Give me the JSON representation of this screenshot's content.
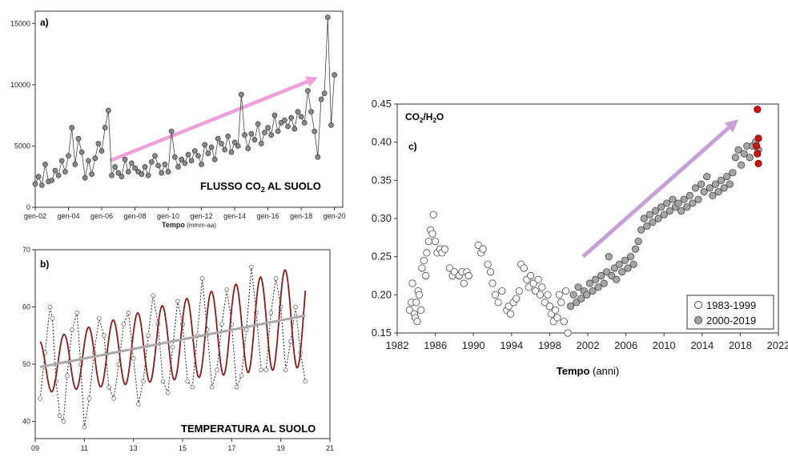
{
  "chart_data": [
    {
      "panel": "a)",
      "type": "line",
      "title": "FLUSSO CO",
      "title_sub": "2",
      "title_rest": " AL SUOLO",
      "xlabel": "Tempo",
      "xlabel_unit": " (mmm-aa)",
      "ylabel": "",
      "ylim": [
        0,
        16000
      ],
      "xlim": [
        2002,
        2020.5
      ],
      "y_ticks": [
        0,
        5000,
        10000,
        15000
      ],
      "x_ticks": [
        {
          "label": "gen-02",
          "value": 2002
        },
        {
          "label": "gen-04",
          "value": 2004
        },
        {
          "label": "gen-06",
          "value": 2006
        },
        {
          "label": "gen-08",
          "value": 2008
        },
        {
          "label": "gen-10",
          "value": 2010
        },
        {
          "label": "gen-12",
          "value": 2012
        },
        {
          "label": "gen-14",
          "value": 2014
        },
        {
          "label": "gen-16",
          "value": 2016
        },
        {
          "label": "gen-18",
          "value": 2018
        },
        {
          "label": "gen-20",
          "value": 2020
        }
      ],
      "series": [
        {
          "x": [
            2002.0,
            2002.2,
            2002.4,
            2002.6,
            2002.8,
            2003.0,
            2003.2,
            2003.4,
            2003.6,
            2003.8,
            2004.0,
            2004.2,
            2004.4,
            2004.6,
            2004.8,
            2005.0,
            2005.2,
            2005.4,
            2005.6,
            2005.8,
            2006.0,
            2006.2,
            2006.4,
            2006.6,
            2006.8,
            2007.0,
            2007.2,
            2007.4,
            2007.6,
            2007.8,
            2008.0,
            2008.2,
            2008.4,
            2008.6,
            2008.8,
            2009.0,
            2009.2,
            2009.4,
            2009.6,
            2009.8,
            2010.0,
            2010.2,
            2010.4,
            2010.6,
            2010.8,
            2011.0,
            2011.2,
            2011.4,
            2011.6,
            2011.8,
            2012.0,
            2012.2,
            2012.4,
            2012.6,
            2012.8,
            2013.0,
            2013.2,
            2013.4,
            2013.6,
            2013.8,
            2014.0,
            2014.2,
            2014.4,
            2014.6,
            2014.8,
            2015.0,
            2015.2,
            2015.4,
            2015.6,
            2015.8,
            2016.0,
            2016.2,
            2016.4,
            2016.6,
            2016.8,
            2017.0,
            2017.2,
            2017.4,
            2017.6,
            2017.8,
            2018.0,
            2018.2,
            2018.4,
            2018.6,
            2018.8,
            2019.0,
            2019.2,
            2019.4,
            2019.6,
            2019.8,
            2020.0
          ],
          "y": [
            1900,
            2500,
            1800,
            3500,
            2100,
            2200,
            3000,
            2600,
            3800,
            2900,
            4200,
            6500,
            3500,
            5600,
            4500,
            2400,
            3800,
            2700,
            4000,
            5200,
            4600,
            6500,
            7900,
            2600,
            3300,
            2800,
            2500,
            3900,
            2900,
            3600,
            3200,
            2900,
            2700,
            3300,
            2600,
            3700,
            4200,
            3400,
            2800,
            3500,
            2900,
            6200,
            4100,
            3300,
            3900,
            3600,
            4300,
            3800,
            4600,
            4200,
            3500,
            5100,
            4400,
            4900,
            3900,
            5600,
            5200,
            4700,
            5800,
            4500,
            5300,
            5000,
            9200,
            5900,
            4800,
            6000,
            5500,
            6800,
            5200,
            6100,
            6500,
            5900,
            7500,
            6200,
            6900,
            7100,
            6600,
            7300,
            6400,
            7800,
            7400,
            6900,
            9500,
            7800,
            6200,
            4100,
            8800,
            9300,
            15500,
            6700,
            10800
          ]
        }
      ],
      "annotations": [
        {
          "type": "arrow",
          "color": "#f0a0d8",
          "from": [
            2006.5,
            3800
          ],
          "to": [
            2019.0,
            10600
          ]
        }
      ]
    },
    {
      "panel": "b)",
      "type": "line",
      "title": "TEMPERATURA AL SUOLO",
      "ylim": [
        37,
        70
      ],
      "xlim": [
        9,
        21
      ],
      "y_ticks": [
        40,
        50,
        60,
        70
      ],
      "x_ticks": [
        {
          "label": "09",
          "value": 9
        },
        {
          "label": "11",
          "value": 11
        },
        {
          "label": "13",
          "value": 13
        },
        {
          "label": "15",
          "value": 15
        },
        {
          "label": "17",
          "value": 17
        },
        {
          "label": "19",
          "value": 19
        },
        {
          "label": "21",
          "value": 21
        }
      ],
      "fit_sine": {
        "offset_start": 49.5,
        "offset_end": 58.5,
        "amp_start": 4.5,
        "amp_end": 9.0,
        "period": 1.0,
        "phase": 0.28,
        "x_start": 9.2,
        "x_end": 20.0,
        "color": "#8b1a1a"
      },
      "trend": {
        "from": [
          9.2,
          49.5
        ],
        "to": [
          20.0,
          58.5
        ],
        "color": "#a8a8a8"
      },
      "observed": {
        "x": [
          9.2,
          9.4,
          9.6,
          9.7,
          9.85,
          10.0,
          10.15,
          10.3,
          10.5,
          10.7,
          10.85,
          11.0,
          11.2,
          11.4,
          11.6,
          11.8,
          12.0,
          12.2,
          12.4,
          12.6,
          12.8,
          13.0,
          13.2,
          13.4,
          13.6,
          13.8,
          14.0,
          14.2,
          14.4,
          14.6,
          14.8,
          15.0,
          15.2,
          15.4,
          15.6,
          15.8,
          16.0,
          16.2,
          16.4,
          16.6,
          16.8,
          17.0,
          17.2,
          17.4,
          17.6,
          17.8,
          18.0,
          18.2,
          18.4,
          18.6,
          18.8,
          19.0,
          19.2,
          19.4,
          19.6,
          19.8,
          20.0
        ],
        "y": [
          44,
          52,
          60,
          58,
          47,
          41,
          40,
          48,
          56,
          59,
          50,
          39,
          44,
          52,
          58,
          55,
          46,
          44,
          50,
          57,
          59,
          51,
          43,
          47,
          55,
          62,
          57,
          47,
          45,
          53,
          61,
          57,
          47,
          46,
          55,
          65,
          56,
          46,
          49,
          57,
          63,
          57,
          46,
          48,
          56,
          67,
          59,
          49,
          49,
          59,
          65,
          60,
          49,
          54,
          60,
          52,
          47
        ]
      }
    },
    {
      "panel": "c)",
      "type": "scatter",
      "title": "CO",
      "title_sub": "2",
      "title_mid": "/H",
      "title_sub2": "2",
      "title_rest": "O",
      "xlabel": "Tempo",
      "xlabel_unit": " (anni)",
      "ylim": [
        0.15,
        0.45
      ],
      "xlim": [
        1982,
        2022
      ],
      "y_ticks": [
        "0.15",
        "0.20",
        "0.25",
        "0.30",
        "0.35",
        "0.40",
        "0.45"
      ],
      "x_ticks": [
        "1982",
        "1986",
        "1990",
        "1994",
        "1998",
        "2002",
        "2006",
        "2010",
        "2014",
        "2018",
        "2022"
      ],
      "legend": {
        "position": "bottom-right",
        "entries": [
          "1983-1999",
          "2000-2019"
        ]
      },
      "series": [
        {
          "name": "1983-1999",
          "color": "#ffffff",
          "points": [
            [
              1983.3,
              0.18
            ],
            [
              1983.5,
              0.19
            ],
            [
              1983.6,
              0.215
            ],
            [
              1983.8,
              0.175
            ],
            [
              1983.9,
              0.17
            ],
            [
              1984.0,
              0.19
            ],
            [
              1984.1,
              0.165
            ],
            [
              1984.2,
              0.205
            ],
            [
              1984.3,
              0.2
            ],
            [
              1984.5,
              0.18
            ],
            [
              1984.6,
              0.235
            ],
            [
              1984.8,
              0.245
            ],
            [
              1985.0,
              0.225
            ],
            [
              1985.1,
              0.255
            ],
            [
              1985.3,
              0.27
            ],
            [
              1985.5,
              0.285
            ],
            [
              1985.7,
              0.28
            ],
            [
              1985.8,
              0.305
            ],
            [
              1986.0,
              0.27
            ],
            [
              1986.2,
              0.255
            ],
            [
              1986.5,
              0.26
            ],
            [
              1986.7,
              0.255
            ],
            [
              1987.0,
              0.26
            ],
            [
              1987.5,
              0.235
            ],
            [
              1987.8,
              0.225
            ],
            [
              1988.0,
              0.23
            ],
            [
              1988.5,
              0.225
            ],
            [
              1988.8,
              0.23
            ],
            [
              1989.0,
              0.215
            ],
            [
              1989.3,
              0.23
            ],
            [
              1989.5,
              0.225
            ],
            [
              1990.5,
              0.265
            ],
            [
              1990.8,
              0.255
            ],
            [
              1991.0,
              0.26
            ],
            [
              1991.5,
              0.24
            ],
            [
              1991.8,
              0.23
            ],
            [
              1992.0,
              0.215
            ],
            [
              1992.3,
              0.2
            ],
            [
              1992.6,
              0.19
            ],
            [
              1993.0,
              0.205
            ],
            [
              1993.5,
              0.18
            ],
            [
              1993.7,
              0.185
            ],
            [
              1993.9,
              0.175
            ],
            [
              1994.2,
              0.19
            ],
            [
              1994.5,
              0.195
            ],
            [
              1994.8,
              0.205
            ],
            [
              1995.0,
              0.24
            ],
            [
              1995.3,
              0.235
            ],
            [
              1995.6,
              0.22
            ],
            [
              1995.8,
              0.21
            ],
            [
              1996.0,
              0.225
            ],
            [
              1996.3,
              0.215
            ],
            [
              1996.5,
              0.205
            ],
            [
              1996.8,
              0.22
            ],
            [
              1997.0,
              0.2
            ],
            [
              1997.2,
              0.21
            ],
            [
              1997.5,
              0.19
            ],
            [
              1997.8,
              0.2
            ],
            [
              1998.0,
              0.185
            ],
            [
              1998.2,
              0.175
            ],
            [
              1998.4,
              0.165
            ],
            [
              1998.6,
              0.18
            ],
            [
              1998.8,
              0.17
            ],
            [
              1999.0,
              0.2
            ],
            [
              1999.2,
              0.19
            ],
            [
              1999.5,
              0.165
            ],
            [
              1999.7,
              0.205
            ],
            [
              1999.9,
              0.15
            ]
          ]
        },
        {
          "name": "2000-2019",
          "color": "#a6a6a6",
          "points": [
            [
              2000.2,
              0.185
            ],
            [
              2000.5,
              0.2
            ],
            [
              2000.8,
              0.19
            ],
            [
              2001.0,
              0.21
            ],
            [
              2001.3,
              0.195
            ],
            [
              2001.6,
              0.205
            ],
            [
              2001.9,
              0.2
            ],
            [
              2002.2,
              0.215
            ],
            [
              2002.5,
              0.205
            ],
            [
              2002.8,
              0.22
            ],
            [
              2003.1,
              0.21
            ],
            [
              2003.4,
              0.225
            ],
            [
              2003.7,
              0.215
            ],
            [
              2004.0,
              0.23
            ],
            [
              2004.2,
              0.25
            ],
            [
              2004.5,
              0.225
            ],
            [
              2004.8,
              0.235
            ],
            [
              2005.0,
              0.22
            ],
            [
              2005.3,
              0.24
            ],
            [
              2005.6,
              0.23
            ],
            [
              2005.9,
              0.245
            ],
            [
              2006.2,
              0.235
            ],
            [
              2006.5,
              0.25
            ],
            [
              2006.8,
              0.24
            ],
            [
              2007.0,
              0.26
            ],
            [
              2007.3,
              0.27
            ],
            [
              2007.6,
              0.285
            ],
            [
              2007.9,
              0.3
            ],
            [
              2008.2,
              0.29
            ],
            [
              2008.5,
              0.305
            ],
            [
              2008.8,
              0.295
            ],
            [
              2009.1,
              0.31
            ],
            [
              2009.4,
              0.3
            ],
            [
              2009.7,
              0.315
            ],
            [
              2010.0,
              0.305
            ],
            [
              2010.3,
              0.32
            ],
            [
              2010.6,
              0.31
            ],
            [
              2010.9,
              0.325
            ],
            [
              2011.2,
              0.315
            ],
            [
              2011.5,
              0.32
            ],
            [
              2011.8,
              0.31
            ],
            [
              2012.1,
              0.325
            ],
            [
              2012.4,
              0.315
            ],
            [
              2012.7,
              0.33
            ],
            [
              2013.0,
              0.32
            ],
            [
              2013.3,
              0.34
            ],
            [
              2013.6,
              0.325
            ],
            [
              2013.9,
              0.345
            ],
            [
              2014.2,
              0.335
            ],
            [
              2014.5,
              0.355
            ],
            [
              2014.8,
              0.34
            ],
            [
              2015.1,
              0.33
            ],
            [
              2015.4,
              0.345
            ],
            [
              2015.7,
              0.335
            ],
            [
              2016.0,
              0.35
            ],
            [
              2016.3,
              0.34
            ],
            [
              2016.6,
              0.355
            ],
            [
              2016.9,
              0.345
            ],
            [
              2017.2,
              0.36
            ],
            [
              2017.5,
              0.38
            ],
            [
              2017.8,
              0.39
            ],
            [
              2018.1,
              0.37
            ],
            [
              2018.4,
              0.385
            ],
            [
              2018.7,
              0.395
            ],
            [
              2019.0,
              0.38
            ],
            [
              2019.3,
              0.395
            ],
            [
              2019.6,
              0.4
            ],
            [
              2019.9,
              0.39
            ]
          ]
        },
        {
          "name": "",
          "color": "#cc1111",
          "points": [
            [
              2019.8,
              0.443
            ],
            [
              2019.9,
              0.405
            ],
            [
              2019.7,
              0.395
            ],
            [
              2019.8,
              0.385
            ],
            [
              2019.9,
              0.372
            ]
          ]
        }
      ],
      "annotations": [
        {
          "type": "arrow",
          "color": "#c8a0d8",
          "from": [
            2001.5,
            0.25
          ],
          "to": [
            2017.8,
            0.43
          ]
        }
      ]
    }
  ]
}
